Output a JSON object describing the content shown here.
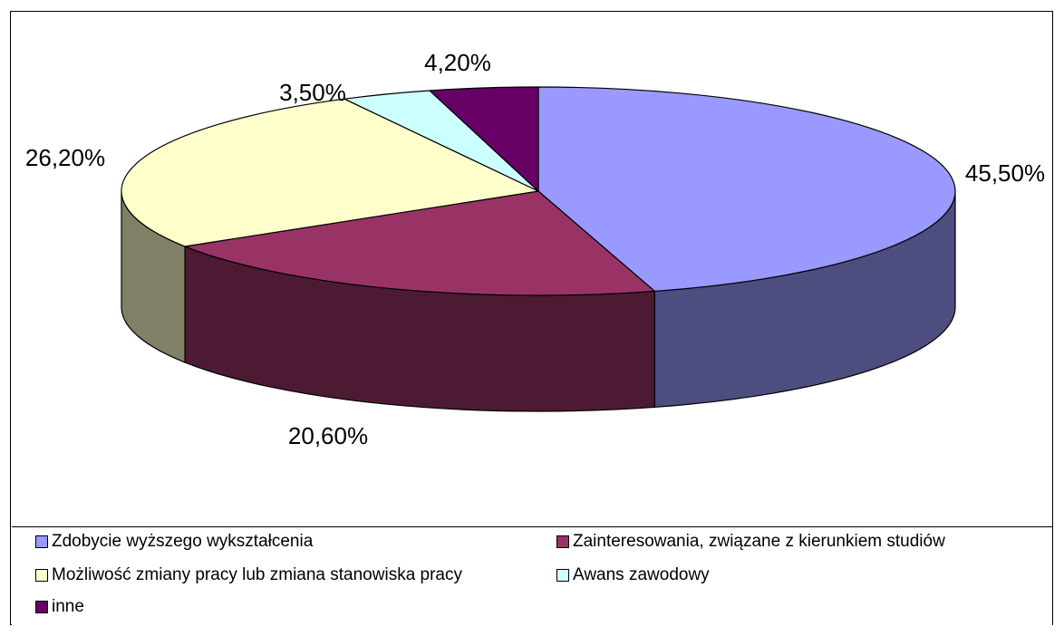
{
  "chart_data": {
    "type": "pie",
    "style": "3d",
    "title": "",
    "legend_position": "bottom",
    "slices": [
      {
        "label": "Zdobycie wyższego wykształcenia",
        "value": 45.5,
        "value_label": "45,50%",
        "color": "#9999ff",
        "side_color": "#4d4d80"
      },
      {
        "label": "Zainteresowania, związane z kierunkiem studiów",
        "value": 20.6,
        "value_label": "20,60%",
        "color": "#993366",
        "side_color": "#4d1a33"
      },
      {
        "label": "Możliwość zmiany pracy lub zmiana stanowiska pracy",
        "value": 26.2,
        "value_label": "26,20%",
        "color": "#ffffcc",
        "side_color": "#808066"
      },
      {
        "label": "Awans zawodowy",
        "value": 3.5,
        "value_label": "3,50%",
        "color": "#ccffff",
        "side_color": "#668080"
      },
      {
        "label": "inne",
        "value": 4.2,
        "value_label": "4,20%",
        "color": "#660066",
        "side_color": "#330033"
      }
    ]
  }
}
